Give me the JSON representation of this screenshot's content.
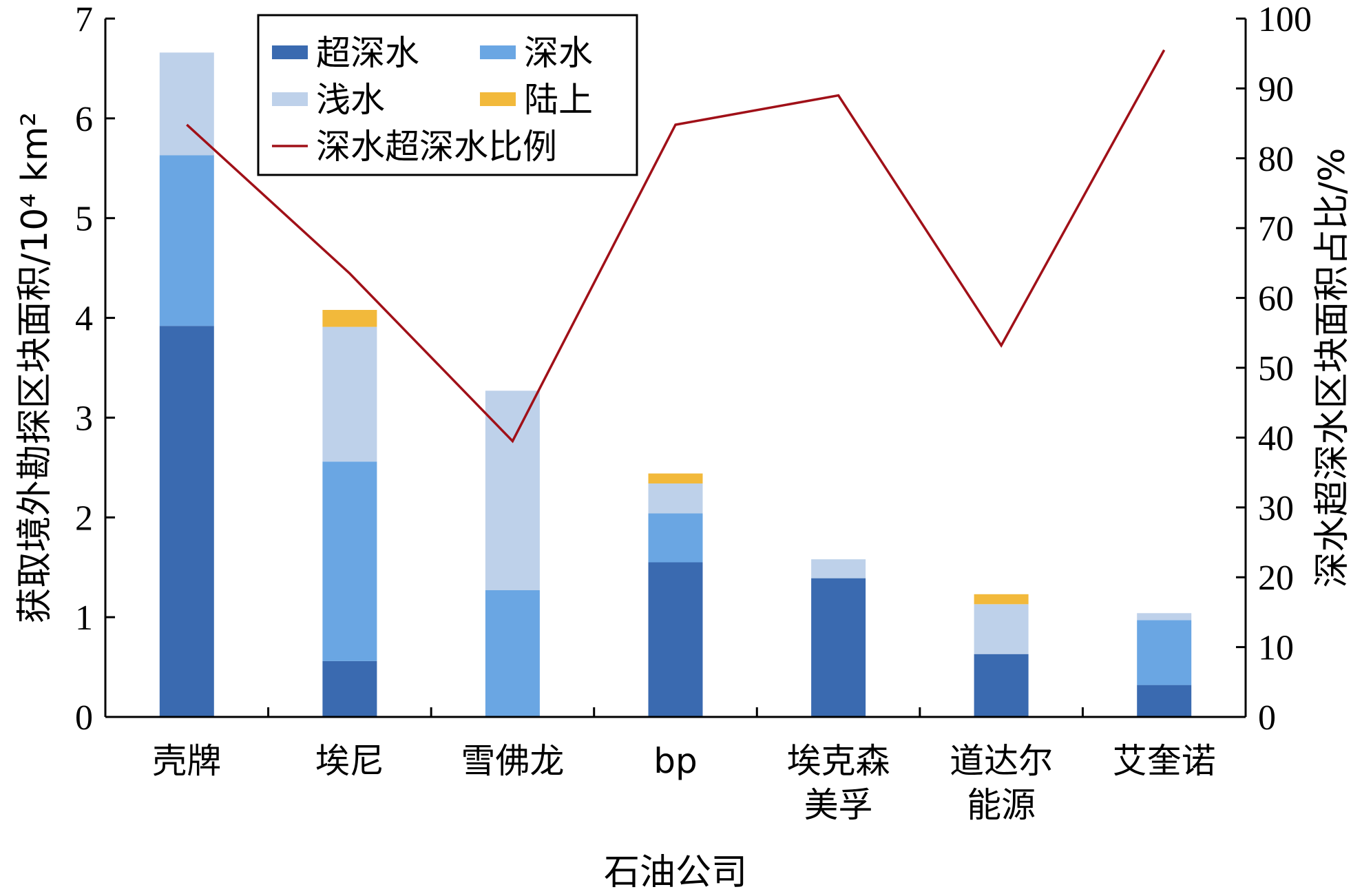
{
  "chart_data": {
    "type": "bar",
    "categories": [
      [
        "壳牌"
      ],
      [
        "埃尼"
      ],
      [
        "雪佛龙"
      ],
      [
        "bp"
      ],
      [
        "埃克森",
        "美孚"
      ],
      [
        "道达尔",
        "能源"
      ],
      [
        "艾奎诺"
      ]
    ],
    "xlabel": "石油公司",
    "ylabel_left": "获取境外勘探区块面积/10⁴ km²",
    "ylabel_right": "深水超深水区块面积占比/%",
    "ylim_left": [
      0,
      7
    ],
    "ylim_right": [
      0,
      100
    ],
    "yticks_left": [
      "0",
      "1",
      "2",
      "3",
      "4",
      "5",
      "6",
      "7"
    ],
    "yticks_right": [
      "0",
      "10",
      "20",
      "30",
      "40",
      "50",
      "60",
      "70",
      "80",
      "90",
      "100"
    ],
    "series": [
      {
        "name": "超深水",
        "color": "#3a6ab0",
        "values": [
          3.92,
          0.56,
          0.0,
          1.55,
          1.39,
          0.63,
          0.32
        ]
      },
      {
        "name": "深水",
        "color": "#6aa6e3",
        "values": [
          1.71,
          2.0,
          1.27,
          0.49,
          0.0,
          0.0,
          0.65
        ]
      },
      {
        "name": "浅水",
        "color": "#bed1ea",
        "values": [
          1.03,
          1.35,
          2.0,
          0.3,
          0.19,
          0.5,
          0.07
        ]
      },
      {
        "name": "陆上",
        "color": "#f2b93b",
        "values": [
          0.0,
          0.17,
          0.0,
          0.1,
          0.0,
          0.1,
          0.0
        ]
      }
    ],
    "line_series": {
      "name": "深水超深水比例",
      "color": "#a01018",
      "axis": "right",
      "values": [
        84.8,
        63.5,
        39.5,
        84.8,
        89.0,
        53.2,
        95.5
      ]
    },
    "legend": {
      "position": "top-left",
      "rows": [
        [
          {
            "label": "超深水",
            "kind": "box",
            "color": "#3a6ab0"
          },
          {
            "label": "深水",
            "kind": "box",
            "color": "#6aa6e3"
          }
        ],
        [
          {
            "label": "浅水",
            "kind": "box",
            "color": "#bed1ea"
          },
          {
            "label": "陆上",
            "kind": "box",
            "color": "#f2b93b"
          }
        ],
        [
          {
            "label": "深水超深水比例",
            "kind": "line",
            "color": "#a01018"
          }
        ]
      ]
    }
  }
}
